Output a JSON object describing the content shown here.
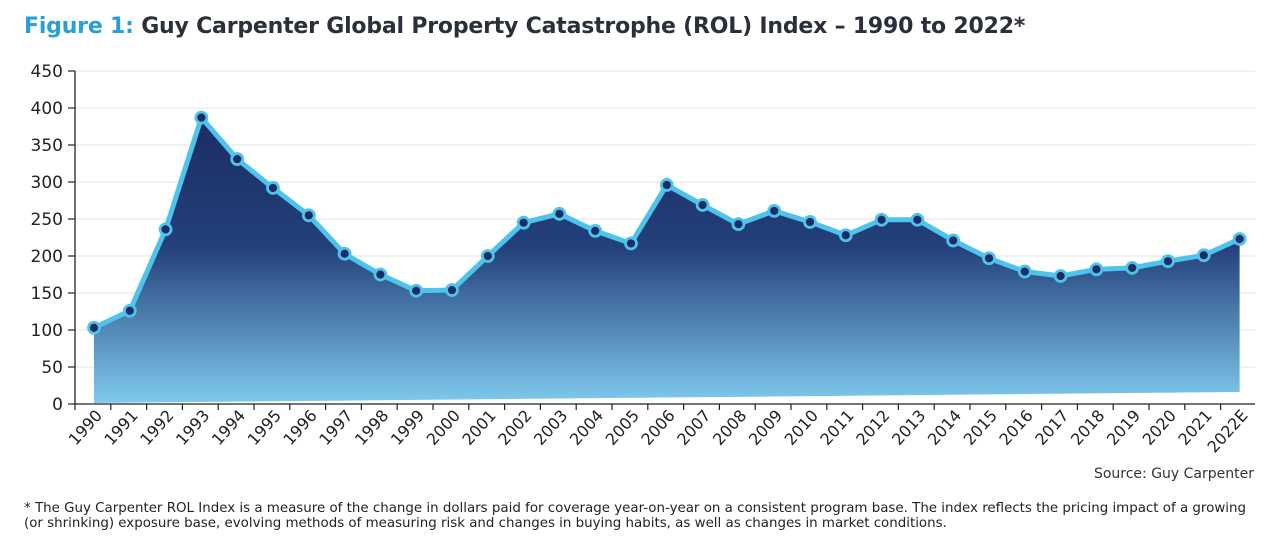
{
  "title": {
    "figure_label": "Figure 1:",
    "text": "Guy Carpenter Global Property Catastrophe (ROL) Index – 1990 to 2022*"
  },
  "source": "Source: Guy Carpenter",
  "footnote": "* The Guy Carpenter ROL Index is a measure of the change in dollars paid for coverage year-on-year on a consistent program base. The index reflects the pricing impact of a growing (or shrinking) exposure base, evolving methods of measuring risk and changes in buying habits, as well as changes in market conditions.",
  "colors": {
    "line": "#4dc3ee",
    "area_top": "#1b2d63",
    "area_bottom": "#7fcbee",
    "marker_fill": "#1b2d63",
    "grid": "#e4e4e4",
    "title_accent": "#2a9fd6"
  },
  "chart_data": {
    "type": "area",
    "title": "Guy Carpenter Global Property Catastrophe (ROL) Index – 1990 to 2022*",
    "xlabel": "",
    "ylabel": "",
    "ylim": [
      0,
      450
    ],
    "yticks": [
      0,
      50,
      100,
      150,
      200,
      250,
      300,
      350,
      400,
      450
    ],
    "grid": true,
    "categories": [
      "1990",
      "1991",
      "1992",
      "1993",
      "1994",
      "1995",
      "1996",
      "1997",
      "1998",
      "1999",
      "2000",
      "2001",
      "2002",
      "2003",
      "2004",
      "2005",
      "2006",
      "2007",
      "2008",
      "2009",
      "2010",
      "2011",
      "2012",
      "2013",
      "2014",
      "2015",
      "2016",
      "2017",
      "2018",
      "2019",
      "2020",
      "2021",
      "2022E"
    ],
    "series": [
      {
        "name": "ROL Index",
        "values": [
          103,
          126,
          236,
          387,
          331,
          292,
          255,
          203,
          175,
          153,
          154,
          200,
          245,
          257,
          234,
          217,
          296,
          269,
          243,
          261,
          246,
          228,
          249,
          249,
          221,
          197,
          179,
          173,
          182,
          184,
          193,
          201,
          223
        ]
      }
    ]
  }
}
